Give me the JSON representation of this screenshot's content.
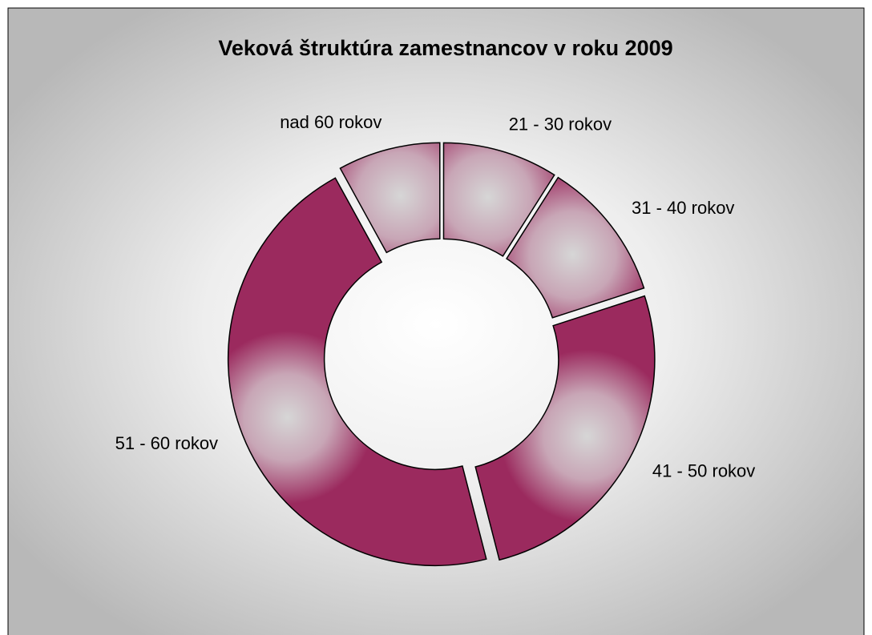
{
  "chart_data": {
    "type": "donut",
    "title": "Veková štruktúra zamestnancov v roku 2009",
    "categories": [
      "21 - 30 rokov",
      "31 - 40 rokov",
      "41 - 50 rokov",
      "51 - 60 rokov",
      "nad 60 rokov"
    ],
    "values": [
      9,
      11,
      26,
      46,
      8
    ],
    "color": "#9b2a5e"
  }
}
